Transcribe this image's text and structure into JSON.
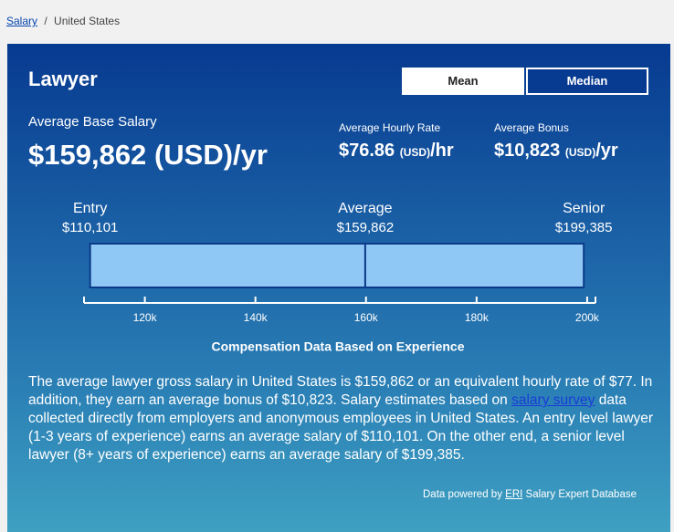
{
  "breadcrumb": {
    "link": "Salary",
    "separator": "/",
    "current": "United States"
  },
  "header": {
    "title": "Lawyer",
    "toggle": [
      "Mean",
      "Median"
    ]
  },
  "summary": {
    "base": {
      "label": "Average Base Salary",
      "amount": "$159,862",
      "unit": "(USD)",
      "period": "/yr"
    },
    "hourly": {
      "label": "Average Hourly Rate",
      "amount": "$76.86",
      "unit": "(USD)",
      "period": "/hr"
    },
    "bonus": {
      "label": "Average Bonus",
      "amount": "$10,823",
      "unit": "(USD)",
      "period": "/yr"
    }
  },
  "chart_data": {
    "type": "range",
    "title": "Compensation Data Based on Experience",
    "categories": [
      "Entry",
      "Average",
      "Senior"
    ],
    "values": [
      110101,
      159862,
      199385
    ],
    "value_labels": [
      "$110,101",
      "$159,862",
      "$199,385"
    ],
    "color": "#90c8f5",
    "xlim": [
      109000,
      201500
    ],
    "xticks": [
      {
        "value": 120000,
        "label": "120k"
      },
      {
        "value": 140000,
        "label": "140k"
      },
      {
        "value": 160000,
        "label": "160k"
      },
      {
        "value": 180000,
        "label": "180k"
      },
      {
        "value": 200000,
        "label": "200k"
      }
    ]
  },
  "description": {
    "before": "The average lawyer gross salary in United States is $159,862 or an equivalent hourly rate of $77. In addition, they earn an average bonus of $10,823. Salary estimates based on ",
    "link": "salary survey",
    "after": " data collected directly from employers and anonymous employees in United States. An entry level lawyer (1-3 years of experience) earns an average salary of $110,101. On the other end, a senior level lawyer (8+ years of experience) earns an average salary of $199,385."
  },
  "footer": {
    "text": "Data powered by",
    "link": "ERI",
    "rest": "Salary Expert Database"
  }
}
